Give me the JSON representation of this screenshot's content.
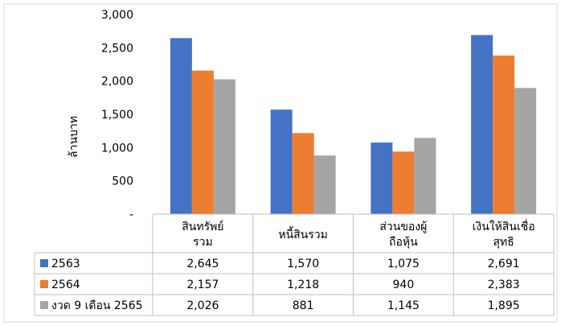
{
  "chart_data": {
    "type": "bar",
    "ylabel": "ล้านบาท",
    "ylim": [
      0,
      3000
    ],
    "yticks": [
      0,
      500,
      1000,
      1500,
      2000,
      2500,
      3000
    ],
    "ytick_labels": [
      "-",
      "500",
      "1,000",
      "1,500",
      "2,000",
      "2,500",
      "3,000"
    ],
    "grid": false,
    "legend": "data-table",
    "categories": [
      [
        "สินทรัพย์",
        "รวม"
      ],
      [
        "หนี้สินรวม"
      ],
      [
        "ส่วนของผู้",
        "ถือหุ้น"
      ],
      [
        "เงินให้สินเชื่อ",
        "สุทธิ"
      ]
    ],
    "series": [
      {
        "name": "2563",
        "color": "#4472c4",
        "values": [
          2645,
          1570,
          1075,
          2691
        ],
        "labels": [
          "2,645",
          "1,570",
          "1,075",
          "2,691"
        ]
      },
      {
        "name": "2564",
        "color": "#ed7d31",
        "values": [
          2157,
          1218,
          940,
          2383
        ],
        "labels": [
          "2,157",
          "1,218",
          "940",
          "2,383"
        ]
      },
      {
        "name": "งวด 9 เดือน 2565",
        "color": "#a5a5a5",
        "values": [
          2026,
          881,
          1145,
          1895
        ],
        "labels": [
          "2,026",
          "881",
          "1,145",
          "1,895"
        ]
      }
    ]
  }
}
